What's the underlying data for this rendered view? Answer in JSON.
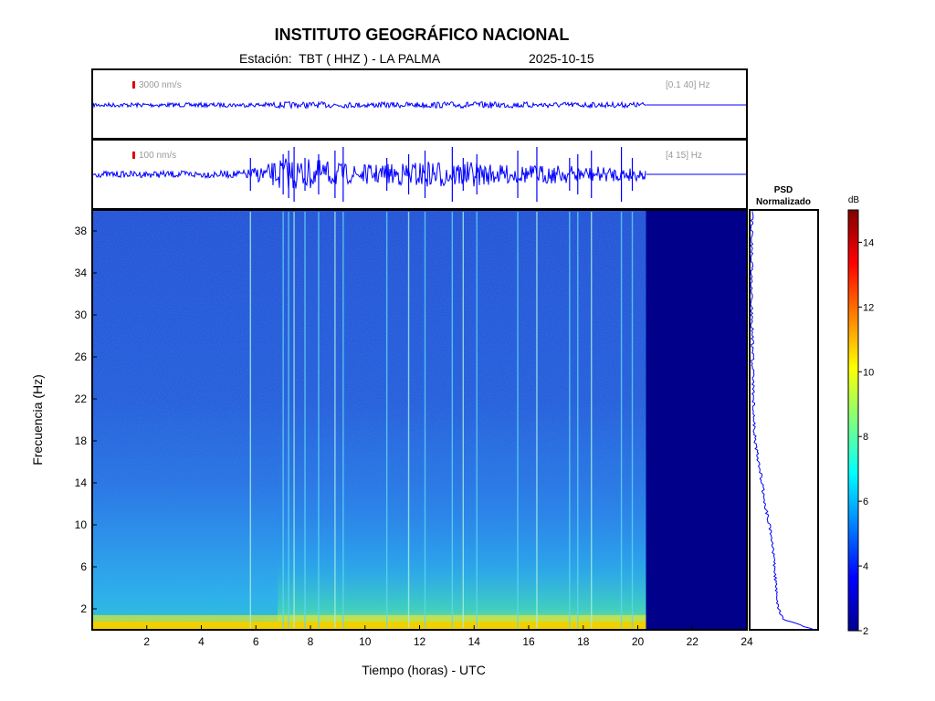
{
  "header": {
    "title": "INSTITUTO GEOGRÁFICO NACIONAL",
    "station": "Estación:  TBT ( HHZ ) - LA PALMA",
    "date": "2025-10-15"
  },
  "colors": {
    "trace": "#0000ff",
    "scale_bar": "#dd0000",
    "no_data": "#00008b"
  },
  "chart_data": [
    {
      "type": "line",
      "name": "waveform-broadband",
      "scale_label": "3000 nm/s",
      "band_label": "[0.1 40] Hz",
      "xlim": [
        0,
        24
      ],
      "data_end_hour": 20.3,
      "amplitude_profile": [
        [
          0,
          0.08
        ],
        [
          6,
          0.08
        ],
        [
          7,
          0.12
        ],
        [
          10,
          0.1
        ],
        [
          14,
          0.12
        ],
        [
          18,
          0.1
        ],
        [
          20.3,
          0.1
        ]
      ]
    },
    {
      "type": "line",
      "name": "waveform-filtered",
      "scale_label": "100 nm/s",
      "band_label": "[4 15] Hz",
      "xlim": [
        0,
        24
      ],
      "data_end_hour": 20.3,
      "amplitude_profile": [
        [
          0,
          0.1
        ],
        [
          5.5,
          0.12
        ],
        [
          6.5,
          0.35
        ],
        [
          7,
          0.55
        ],
        [
          8.5,
          0.45
        ],
        [
          9.5,
          0.3
        ],
        [
          11,
          0.35
        ],
        [
          12.5,
          0.45
        ],
        [
          14,
          0.4
        ],
        [
          15,
          0.3
        ],
        [
          17,
          0.3
        ],
        [
          18.5,
          0.25
        ],
        [
          20.3,
          0.2
        ]
      ],
      "spikes_hours": [
        5.8,
        7.0,
        7.2,
        7.4,
        7.8,
        8.3,
        8.9,
        9.2,
        10.8,
        11.6,
        12.2,
        13.2,
        13.6,
        14.1,
        15.6,
        16.3,
        17.5,
        17.8,
        18.3,
        19.4,
        19.8
      ]
    },
    {
      "type": "heatmap",
      "name": "spectrogram",
      "xlabel": "Tiempo (horas) - UTC",
      "ylabel": "Frecuencia  (Hz)",
      "xlim": [
        0,
        24
      ],
      "ylim": [
        0,
        40
      ],
      "x_ticks": [
        2,
        4,
        6,
        8,
        10,
        12,
        14,
        16,
        18,
        20,
        22,
        24
      ],
      "y_ticks": [
        2,
        6,
        10,
        14,
        18,
        22,
        26,
        30,
        34,
        38
      ],
      "data_end_hour": 20.3,
      "vertical_lines_hours": [
        5.8,
        7.0,
        7.2,
        7.4,
        7.8,
        8.3,
        8.9,
        9.2,
        10.8,
        11.6,
        12.2,
        13.2,
        13.6,
        14.1,
        15.6,
        16.3,
        17.5,
        17.8,
        18.3,
        19.4,
        19.8
      ]
    },
    {
      "type": "line",
      "name": "psd-normalized",
      "title": "PSD\nNormalizado",
      "freq_hz": [
        0,
        1,
        2,
        3,
        4,
        6,
        8,
        10,
        12,
        14,
        16,
        18,
        20,
        22,
        26,
        30,
        34,
        38,
        40
      ],
      "psd_norm": [
        0.95,
        0.5,
        0.42,
        0.4,
        0.38,
        0.36,
        0.33,
        0.28,
        0.22,
        0.17,
        0.12,
        0.07,
        0.05,
        0.04,
        0.03,
        0.02,
        0.02,
        0.02,
        0.02
      ]
    },
    {
      "type": "heatmap",
      "name": "colorbar",
      "unit_label": "dB",
      "range": [
        2,
        15
      ],
      "ticks": [
        2,
        4,
        6,
        8,
        10,
        12,
        14
      ]
    }
  ]
}
